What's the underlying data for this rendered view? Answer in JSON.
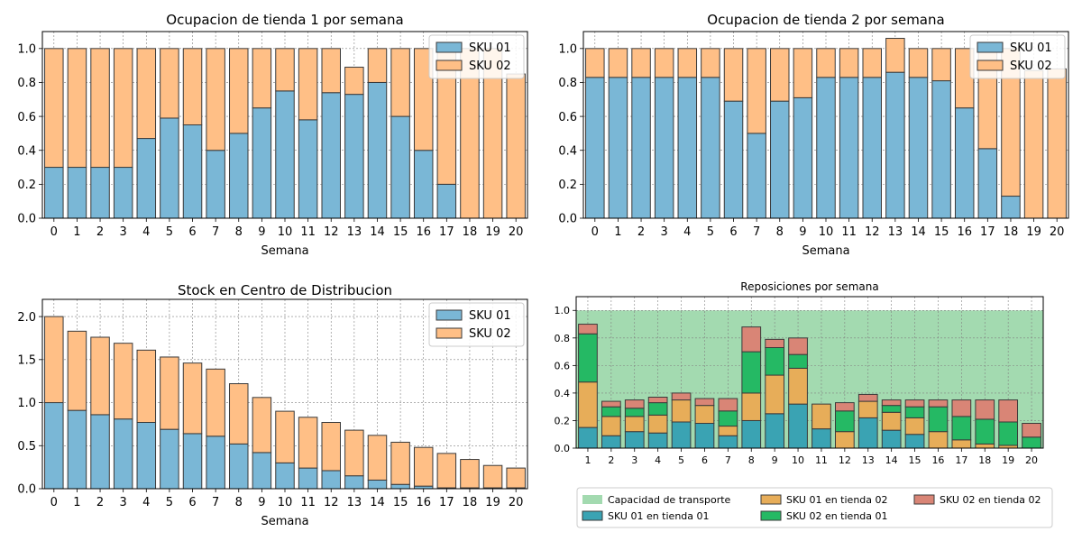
{
  "colors": {
    "sku01": "#7ab7d6",
    "sku02": "#ffbf86",
    "capacity": "#a3dab0",
    "t1_sku01": "#3aa3b3",
    "t2_sku01": "#e7ad59",
    "t1_sku02": "#25b964",
    "t2_sku02": "#d98576",
    "bar_edge": "#3a3a3a",
    "grid": "#808080"
  },
  "chart_data": [
    {
      "type": "bar",
      "stacked": true,
      "title": "Ocupacion de tienda 1 por semana",
      "xlabel": "Semana",
      "ylabel": "",
      "categories": [
        "0",
        "1",
        "2",
        "3",
        "4",
        "5",
        "6",
        "7",
        "8",
        "9",
        "10",
        "11",
        "12",
        "13",
        "14",
        "15",
        "16",
        "17",
        "18",
        "19",
        "20"
      ],
      "ylim": [
        0,
        1.1
      ],
      "yticks": [
        "0.0",
        "0.2",
        "0.4",
        "0.6",
        "0.8",
        "1.0"
      ],
      "grid": true,
      "legend": "top-right",
      "series": [
        {
          "name": "SKU 01",
          "values": [
            0.3,
            0.3,
            0.3,
            0.3,
            0.47,
            0.59,
            0.55,
            0.4,
            0.5,
            0.65,
            0.75,
            0.58,
            0.74,
            0.73,
            0.8,
            0.6,
            0.4,
            0.2,
            0,
            0,
            0
          ]
        },
        {
          "name": "SKU 02",
          "values": [
            0.7,
            0.7,
            0.7,
            0.7,
            0.53,
            0.41,
            0.45,
            0.6,
            0.5,
            0.35,
            0.25,
            0.42,
            0.26,
            0.16,
            0.2,
            0.4,
            0.6,
            0.8,
            1.0,
            1.0,
            0.85
          ]
        }
      ]
    },
    {
      "type": "bar",
      "stacked": true,
      "title": "Ocupacion de tienda 2 por semana",
      "xlabel": "Semana",
      "ylabel": "",
      "categories": [
        "0",
        "1",
        "2",
        "3",
        "4",
        "5",
        "6",
        "7",
        "8",
        "9",
        "10",
        "11",
        "12",
        "13",
        "14",
        "15",
        "16",
        "17",
        "18",
        "19",
        "20"
      ],
      "ylim": [
        0,
        1.1
      ],
      "yticks": [
        "0.0",
        "0.2",
        "0.4",
        "0.6",
        "0.8",
        "1.0"
      ],
      "grid": true,
      "legend": "top-right",
      "series": [
        {
          "name": "SKU 01",
          "values": [
            0.83,
            0.83,
            0.83,
            0.83,
            0.83,
            0.83,
            0.69,
            0.5,
            0.69,
            0.71,
            0.83,
            0.83,
            0.83,
            0.86,
            0.83,
            0.81,
            0.65,
            0.41,
            0.13,
            0,
            0
          ]
        },
        {
          "name": "SKU 02",
          "values": [
            0.17,
            0.17,
            0.17,
            0.17,
            0.17,
            0.17,
            0.31,
            0.5,
            0.31,
            0.29,
            0.17,
            0.17,
            0.17,
            0.2,
            0.17,
            0.19,
            0.35,
            0.59,
            0.87,
            0.87,
            0.88
          ]
        }
      ]
    },
    {
      "type": "bar",
      "stacked": true,
      "title": "Stock en Centro de Distribucion",
      "xlabel": "Semana",
      "ylabel": "",
      "categories": [
        "0",
        "1",
        "2",
        "3",
        "4",
        "5",
        "6",
        "7",
        "8",
        "9",
        "10",
        "11",
        "12",
        "13",
        "14",
        "15",
        "16",
        "17",
        "18",
        "19",
        "20"
      ],
      "ylim": [
        0,
        2.2
      ],
      "yticks": [
        "0.0",
        "0.5",
        "1.0",
        "1.5",
        "2.0"
      ],
      "grid": true,
      "legend": "top-right",
      "series": [
        {
          "name": "SKU 01",
          "values": [
            1.0,
            0.91,
            0.86,
            0.81,
            0.77,
            0.69,
            0.64,
            0.61,
            0.52,
            0.42,
            0.3,
            0.24,
            0.21,
            0.15,
            0.1,
            0.05,
            0.03,
            0.01,
            0.01,
            0.01,
            0.01
          ]
        },
        {
          "name": "SKU 02",
          "values": [
            1.0,
            0.92,
            0.9,
            0.88,
            0.84,
            0.84,
            0.82,
            0.78,
            0.7,
            0.64,
            0.6,
            0.59,
            0.56,
            0.53,
            0.52,
            0.49,
            0.45,
            0.4,
            0.33,
            0.26,
            0.23
          ]
        }
      ]
    },
    {
      "type": "bar",
      "stacked": true,
      "title": "Reposiciones por semana",
      "xlabel": "",
      "ylabel": "",
      "categories": [
        "1",
        "2",
        "3",
        "4",
        "5",
        "6",
        "7",
        "8",
        "9",
        "10",
        "11",
        "12",
        "13",
        "14",
        "15",
        "16",
        "17",
        "18",
        "19",
        "20"
      ],
      "ylim": [
        0,
        1.1
      ],
      "yticks": [
        "0.0",
        "0.2",
        "0.4",
        "0.6",
        "0.8",
        "1.0"
      ],
      "grid": true,
      "legend": "bottom",
      "capacity": {
        "name": "Capacidad de transporte",
        "value": 1.0
      },
      "series": [
        {
          "name": "SKU 01 en tienda 01",
          "values": [
            0.15,
            0.09,
            0.12,
            0.11,
            0.19,
            0.18,
            0.09,
            0.2,
            0.25,
            0.32,
            0.14,
            0,
            0.22,
            0.13,
            0.1,
            0,
            0,
            0,
            0,
            0
          ]
        },
        {
          "name": "SKU 01 en tienda 02",
          "values": [
            0.33,
            0.14,
            0.11,
            0.13,
            0.16,
            0.13,
            0.07,
            0.2,
            0.28,
            0.26,
            0.18,
            0.12,
            0.12,
            0.13,
            0.12,
            0.12,
            0.06,
            0.03,
            0.02,
            0
          ]
        },
        {
          "name": "SKU 02 en tienda 01",
          "values": [
            0.35,
            0.07,
            0.06,
            0.09,
            0,
            0,
            0.11,
            0.3,
            0.2,
            0.1,
            0,
            0.15,
            0,
            0.05,
            0.08,
            0.18,
            0.17,
            0.18,
            0.17,
            0.08
          ]
        },
        {
          "name": "SKU 02 en tienda 02",
          "values": [
            0.07,
            0.04,
            0.06,
            0.04,
            0.05,
            0.05,
            0.09,
            0.18,
            0.06,
            0.12,
            0,
            0.06,
            0.05,
            0.04,
            0.05,
            0.05,
            0.12,
            0.14,
            0.16,
            0.1
          ]
        }
      ]
    }
  ]
}
